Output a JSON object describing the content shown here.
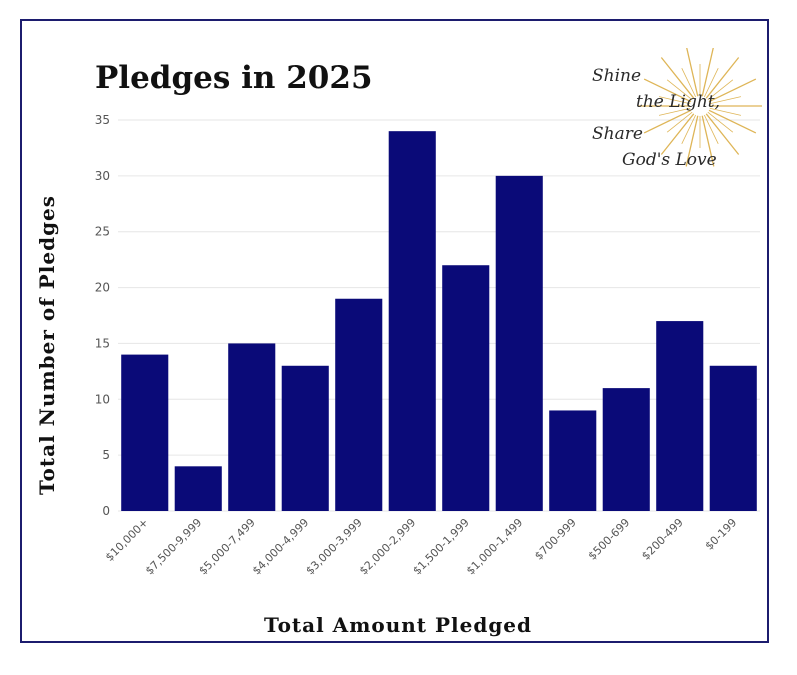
{
  "chart_data": {
    "type": "bar",
    "title": "Pledges in 2025",
    "xlabel": "Total Amount Pledged",
    "ylabel": "Total Number of Pledges",
    "categories": [
      "$10,000+",
      "$7,500-9,999",
      "$5,000-7,499",
      "$4,000-4,999",
      "$3,000-3,999",
      "$2,000-2,999",
      "$1,500-1,999",
      "$1,000-1,499",
      "$700-999",
      "$500-699",
      "$200-499",
      "$0-199"
    ],
    "values": [
      14,
      4,
      15,
      13,
      19,
      34,
      22,
      30,
      9,
      11,
      17,
      13
    ],
    "ylim": [
      0,
      35
    ],
    "yticks": [
      0,
      5,
      10,
      15,
      20,
      25,
      30,
      35
    ],
    "grid": true,
    "legend": "none",
    "bar_color": "#0a0a78"
  },
  "logo": {
    "line1": "Shine",
    "line2": "the Light,",
    "line3": "Share",
    "line4": "God's Love",
    "sun_color": "#d9a93a"
  }
}
